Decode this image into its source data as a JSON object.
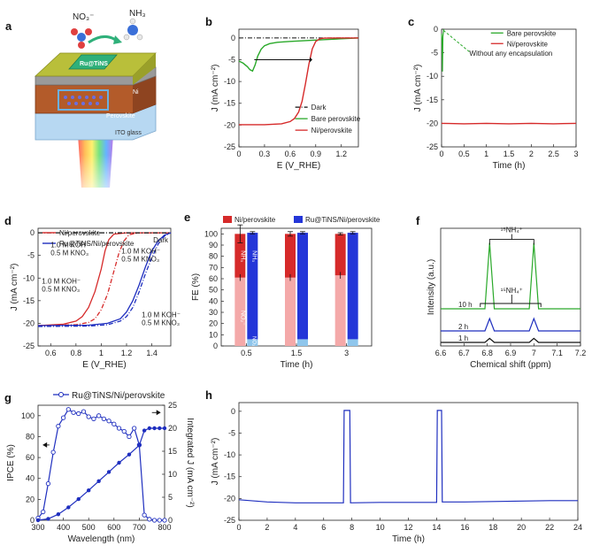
{
  "colors": {
    "red": "#d62a2a",
    "green": "#2aa92a",
    "blue": "#1f2fbf",
    "black": "#111111",
    "pink": "#f4a9a9",
    "lightblue": "#8fc6ec",
    "nh3blue": "#2436d8"
  },
  "panel_a": {
    "label": "a",
    "no3": "NO₃⁻",
    "nh3": "NH₃",
    "catalyst": "Ru@TiNS",
    "ni": "Ni",
    "perovskite": "Perovskite",
    "itoglass": "ITO glass"
  },
  "chart_data": [
    {
      "id": "b",
      "type": "line",
      "label": "b",
      "xlabel": "E (V_RHE)",
      "ylabel": "J (mA cm⁻²)",
      "xlim": [
        0,
        1.4
      ],
      "ylim": [
        -25,
        2
      ],
      "xticks": [
        0,
        0.3,
        0.6,
        0.9,
        1.2
      ],
      "yticks": [
        0,
        -5,
        -10,
        -15,
        -20,
        -25
      ],
      "series": [
        {
          "name": "Dark",
          "color": "#111111",
          "dash": "5,2,1,2",
          "x": [
            0,
            0.4,
            0.8,
            1.2,
            1.4
          ],
          "y": [
            0,
            0,
            0,
            0,
            0
          ]
        },
        {
          "name": "Bare perovskite",
          "color": "#2aa92a",
          "dash": "",
          "x": [
            0,
            0.05,
            0.1,
            0.13,
            0.16,
            0.19,
            0.22,
            0.26,
            0.3,
            0.36,
            0.45,
            0.6,
            0.8,
            1.0,
            1.2,
            1.4
          ],
          "y": [
            -5.3,
            -5.8,
            -6.6,
            -7.3,
            -7.6,
            -6.2,
            -4.2,
            -2.6,
            -1.8,
            -1.3,
            -1.0,
            -0.8,
            -0.6,
            -0.4,
            -0.2,
            0
          ]
        },
        {
          "name": "Ni/perovskite",
          "color": "#d62a2a",
          "dash": "",
          "x": [
            0,
            0.3,
            0.5,
            0.6,
            0.65,
            0.7,
            0.74,
            0.78,
            0.82,
            0.86,
            0.9,
            0.95,
            1.0,
            1.2,
            1.4
          ],
          "y": [
            -19.9,
            -19.9,
            -19.7,
            -19.2,
            -18.5,
            -17,
            -14.5,
            -10.5,
            -6,
            -2.5,
            -0.8,
            -0.2,
            -0.05,
            0,
            0
          ]
        }
      ],
      "annotations": [
        "Dark",
        "Bare perovskite",
        "Ni/perovskite"
      ]
    },
    {
      "id": "c",
      "type": "line",
      "label": "c",
      "xlabel": "Time (h)",
      "ylabel": "J (mA cm⁻²)",
      "xlim": [
        0,
        3
      ],
      "ylim": [
        -25,
        0
      ],
      "xticks": [
        0,
        0.5,
        1,
        1.5,
        2,
        2.5,
        3
      ],
      "yticks": [
        0,
        -5,
        -10,
        -15,
        -20,
        -25
      ],
      "series": [
        {
          "name": "Bare perovskite",
          "color": "#2aa92a",
          "x": [
            0,
            0.01,
            0.02,
            0.03,
            0.05
          ],
          "y": [
            -1,
            -3,
            -9,
            -1.5,
            0
          ]
        },
        {
          "name": "Ni/perovskite",
          "color": "#d62a2a",
          "x": [
            0,
            0.5,
            1,
            1.5,
            2,
            2.5,
            3
          ],
          "y": [
            -20,
            -20.1,
            -20,
            -20.1,
            -20,
            -20.1,
            -20
          ]
        }
      ],
      "annotation": "Without any encapsulation"
    },
    {
      "id": "d",
      "type": "line",
      "label": "d",
      "xlabel": "E (V_RHE)",
      "ylabel": "J (mA cm⁻²)",
      "xlim": [
        0.5,
        1.55
      ],
      "ylim": [
        -25,
        1
      ],
      "xticks": [
        0.6,
        0.8,
        1.0,
        1.2,
        1.4
      ],
      "yticks": [
        0,
        -5,
        -10,
        -15,
        -20,
        -25
      ],
      "legend": [
        "Ni/perovskite",
        "Ru@TiNS/Ni/perovskite"
      ],
      "dark_label": "Dark",
      "series": [
        {
          "name": "Ni/perovskite, 1.0 M KOH⁻ 0.5 M KNO₃",
          "color": "#d62a2a",
          "dash": "",
          "x": [
            0.5,
            0.7,
            0.8,
            0.85,
            0.9,
            0.95,
            1.0,
            1.03,
            1.06,
            1.1,
            1.2,
            1.55
          ],
          "y": [
            -20.5,
            -20.2,
            -19.5,
            -18.5,
            -16.5,
            -13,
            -8,
            -4,
            -1.5,
            -0.3,
            0,
            0
          ]
        },
        {
          "name": "Ni/perovskite, 1.0 M KOH⁻",
          "color": "#d62a2a",
          "dash": "5,2,1,2",
          "x": [
            0.5,
            0.8,
            0.9,
            0.95,
            1.0,
            1.05,
            1.1,
            1.14,
            1.18,
            1.22,
            1.3,
            1.55
          ],
          "y": [
            -20.5,
            -20.3,
            -19.8,
            -19,
            -17,
            -13.5,
            -8.5,
            -4.5,
            -1.8,
            -0.4,
            0,
            0
          ]
        },
        {
          "name": "Ru@TiNS/Ni/perovskite, 1.0 M KOH⁻ 0.5 M KNO₃",
          "color": "#1f2fbf",
          "dash": "",
          "x": [
            0.5,
            0.9,
            1.05,
            1.15,
            1.2,
            1.25,
            1.3,
            1.35,
            1.4,
            1.45,
            1.5,
            1.55
          ],
          "y": [
            -20.5,
            -20.4,
            -20,
            -19,
            -17.5,
            -15,
            -11.5,
            -7.5,
            -4,
            -1.8,
            -0.5,
            0
          ]
        },
        {
          "name": "Ru@TiNS/Ni/perovskite, 1.0 M KOH⁻",
          "color": "#1f2fbf",
          "dash": "5,2,1,2",
          "x": [
            0.5,
            0.9,
            1.05,
            1.15,
            1.2,
            1.25,
            1.3,
            1.35,
            1.4,
            1.45,
            1.5,
            1.55
          ],
          "y": [
            -20.7,
            -20.6,
            -20.3,
            -19.5,
            -18.5,
            -16.5,
            -13,
            -9,
            -5.5,
            -2.5,
            -0.7,
            0
          ]
        },
        {
          "name": "Dark",
          "color": "#111111",
          "dash": "5,2,1,2",
          "x": [
            0.5,
            1.55
          ],
          "y": [
            0,
            0
          ]
        }
      ],
      "annotations": [
        {
          "line1": "1.0 M KOH⁻",
          "line2": "0.5 M KNO₃",
          "color": "#d62a2a"
        },
        {
          "line1": "1.0 M KOH⁻",
          "line2": "0.5 M KNO₃",
          "color": "#d62a2a"
        },
        {
          "line1": "1.0 M KOH⁻",
          "line2": "0.5 M KNO₃",
          "color": "#1f2fbf"
        },
        {
          "line1": "1.0 M KOH⁻",
          "line2": "0.5 M KNO₃",
          "color": "#1f2fbf"
        }
      ]
    },
    {
      "id": "e",
      "type": "bar",
      "label": "e",
      "xlabel": "Time (h)",
      "ylabel": "FE (%)",
      "categories": [
        "0.5",
        "1.5",
        "3"
      ],
      "ylim": [
        0,
        105
      ],
      "yticks": [
        0,
        10,
        20,
        30,
        40,
        50,
        60,
        70,
        80,
        90,
        100
      ],
      "legend": [
        "Ni/perovskite",
        "Ru@TiNS/Ni/perovskite"
      ],
      "series": [
        {
          "name": "Ni/perovskite NO₂⁻",
          "color": "#f4a9a9",
          "values": [
            61,
            61,
            63
          ]
        },
        {
          "name": "Ni/perovskite NH₃",
          "color": "#d62a2a",
          "values": [
            39,
            39,
            37
          ],
          "errors": [
            8,
            2,
            1
          ]
        },
        {
          "name": "Ru@TiNS/Ni/perovskite NO₂⁻",
          "color": "#8fc6ec",
          "values": [
            6,
            6,
            6
          ]
        },
        {
          "name": "Ru@TiNS/Ni/perovskite NH₃",
          "color": "#2436d8",
          "values": [
            95,
            95,
            95
          ],
          "errors": [
            1,
            1,
            1
          ]
        }
      ],
      "bar_labels": {
        "nh3": "NH₃",
        "no2": "NO₂⁻"
      }
    },
    {
      "id": "f",
      "type": "line",
      "label": "f",
      "xlabel": "Chemical shift (ppm)",
      "ylabel": "Intensity (a.u.)",
      "xlim": [
        6.6,
        7.2
      ],
      "xticks": [
        6.6,
        6.7,
        6.8,
        6.9,
        7.0,
        7.1,
        7.2
      ],
      "series": [
        {
          "name": "1 h",
          "color": "#111111",
          "x": [
            6.6,
            6.79,
            6.81,
            6.83,
            6.98,
            7.0,
            7.02,
            7.2
          ],
          "y": [
            0,
            0,
            1.5,
            0,
            0,
            1.5,
            0,
            0
          ]
        },
        {
          "name": "2 h",
          "color": "#1f2fbf",
          "x": [
            6.6,
            6.79,
            6.81,
            6.83,
            6.98,
            7.0,
            7.02,
            7.2
          ],
          "y": [
            0,
            0,
            4.5,
            0,
            0,
            4.5,
            0,
            0
          ]
        },
        {
          "name": "10 h",
          "color": "#2aa92a",
          "x": [
            6.6,
            6.79,
            6.81,
            6.83,
            6.98,
            7.0,
            7.02,
            7.2
          ],
          "y": [
            0,
            0,
            24,
            0,
            0,
            24,
            0,
            0
          ]
        }
      ],
      "peak_label": "¹⁵NH₄⁺",
      "peak_label_2": "¹⁵NH₄⁺"
    },
    {
      "id": "g",
      "type": "line",
      "label": "g",
      "legend": "Ru@TiNS/Ni/perovskite",
      "xlabel": "Wavelength (nm)",
      "ylabel": "IPCE (%)",
      "y2label": "Integrated J (mA cm⁻²)",
      "xlim": [
        300,
        800
      ],
      "ylim": [
        0,
        110
      ],
      "y2lim": [
        0,
        25
      ],
      "xticks": [
        300,
        400,
        500,
        600,
        700,
        800
      ],
      "yticks": [
        0,
        20,
        40,
        60,
        80,
        100
      ],
      "y2ticks": [
        0,
        5,
        10,
        15,
        20,
        25
      ],
      "series": [
        {
          "name": "IPCE",
          "color": "#1f2fbf",
          "x": [
            300,
            320,
            340,
            360,
            380,
            400,
            420,
            440,
            460,
            480,
            500,
            520,
            540,
            560,
            580,
            600,
            620,
            640,
            660,
            680,
            700,
            720,
            740,
            760,
            780,
            800
          ],
          "y": [
            2,
            8,
            35,
            65,
            90,
            98,
            106,
            103,
            102,
            104,
            99,
            97,
            100,
            97,
            95,
            92,
            88,
            85,
            80,
            88,
            72,
            5,
            1,
            0,
            0,
            0
          ]
        },
        {
          "name": "Integrated J",
          "color": "#1f2fbf",
          "axis": "y2",
          "x": [
            300,
            340,
            380,
            420,
            460,
            500,
            540,
            580,
            620,
            660,
            700,
            720,
            740,
            760,
            780,
            800
          ],
          "y": [
            0,
            0.3,
            1.3,
            2.8,
            4.6,
            6.5,
            8.5,
            10.5,
            12.5,
            14.3,
            16.3,
            19.5,
            20,
            20,
            20,
            20
          ]
        }
      ]
    },
    {
      "id": "h",
      "type": "line",
      "label": "h",
      "xlabel": "Time (h)",
      "ylabel": "J (mA cm⁻²)",
      "xlim": [
        0,
        24
      ],
      "ylim": [
        -25,
        2
      ],
      "xticks": [
        0,
        2,
        4,
        6,
        8,
        10,
        12,
        14,
        16,
        18,
        20,
        22,
        24
      ],
      "yticks": [
        0,
        -5,
        -10,
        -15,
        -20,
        -25
      ],
      "series": [
        {
          "name": "Ru@TiNS/Ni/perovskite",
          "color": "#1f2fbf",
          "x": [
            0,
            2,
            4,
            6,
            7.4,
            7.45,
            7.85,
            7.9,
            10,
            12,
            14.0,
            14.05,
            14.35,
            14.4,
            16,
            18,
            20,
            22,
            24
          ],
          "y": [
            -20.3,
            -20.8,
            -21,
            -21,
            -21,
            0.2,
            0.2,
            -21,
            -20.9,
            -20.9,
            -20.9,
            0.2,
            0.2,
            -20.8,
            -20.8,
            -20.7,
            -20.6,
            -20.5,
            -20.5
          ]
        }
      ]
    }
  ]
}
